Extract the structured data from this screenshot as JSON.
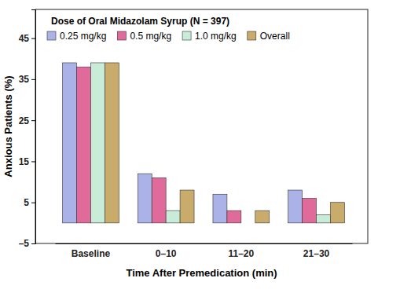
{
  "chart_data": {
    "type": "bar",
    "title": "Dose of Oral Midazolam Syrup (N = 397)",
    "x_label": "Time After Premedication (min)",
    "y_label": "Anxious Patients (%)",
    "categories": [
      "Baseline",
      "0–10",
      "11–20",
      "21–30"
    ],
    "series": [
      {
        "name": "0.25 mg/kg",
        "color": "#aab2e8",
        "values": [
          39,
          12,
          7,
          8
        ]
      },
      {
        "name": "0.5 mg/kg",
        "color": "#e06a9a",
        "values": [
          38,
          11,
          3,
          6
        ]
      },
      {
        "name": "1.0 mg/kg",
        "color": "#c8ecd8",
        "values": [
          39,
          3,
          0,
          2
        ]
      },
      {
        "name": "Overall",
        "color": "#c9ac6c",
        "values": [
          39,
          8,
          3,
          5
        ]
      }
    ],
    "ylim": [
      -5,
      52
    ],
    "yticks": [
      {
        "value": -5,
        "label": "–5"
      },
      5,
      15,
      25,
      35,
      45
    ],
    "grid": false,
    "legend": "top-left"
  }
}
